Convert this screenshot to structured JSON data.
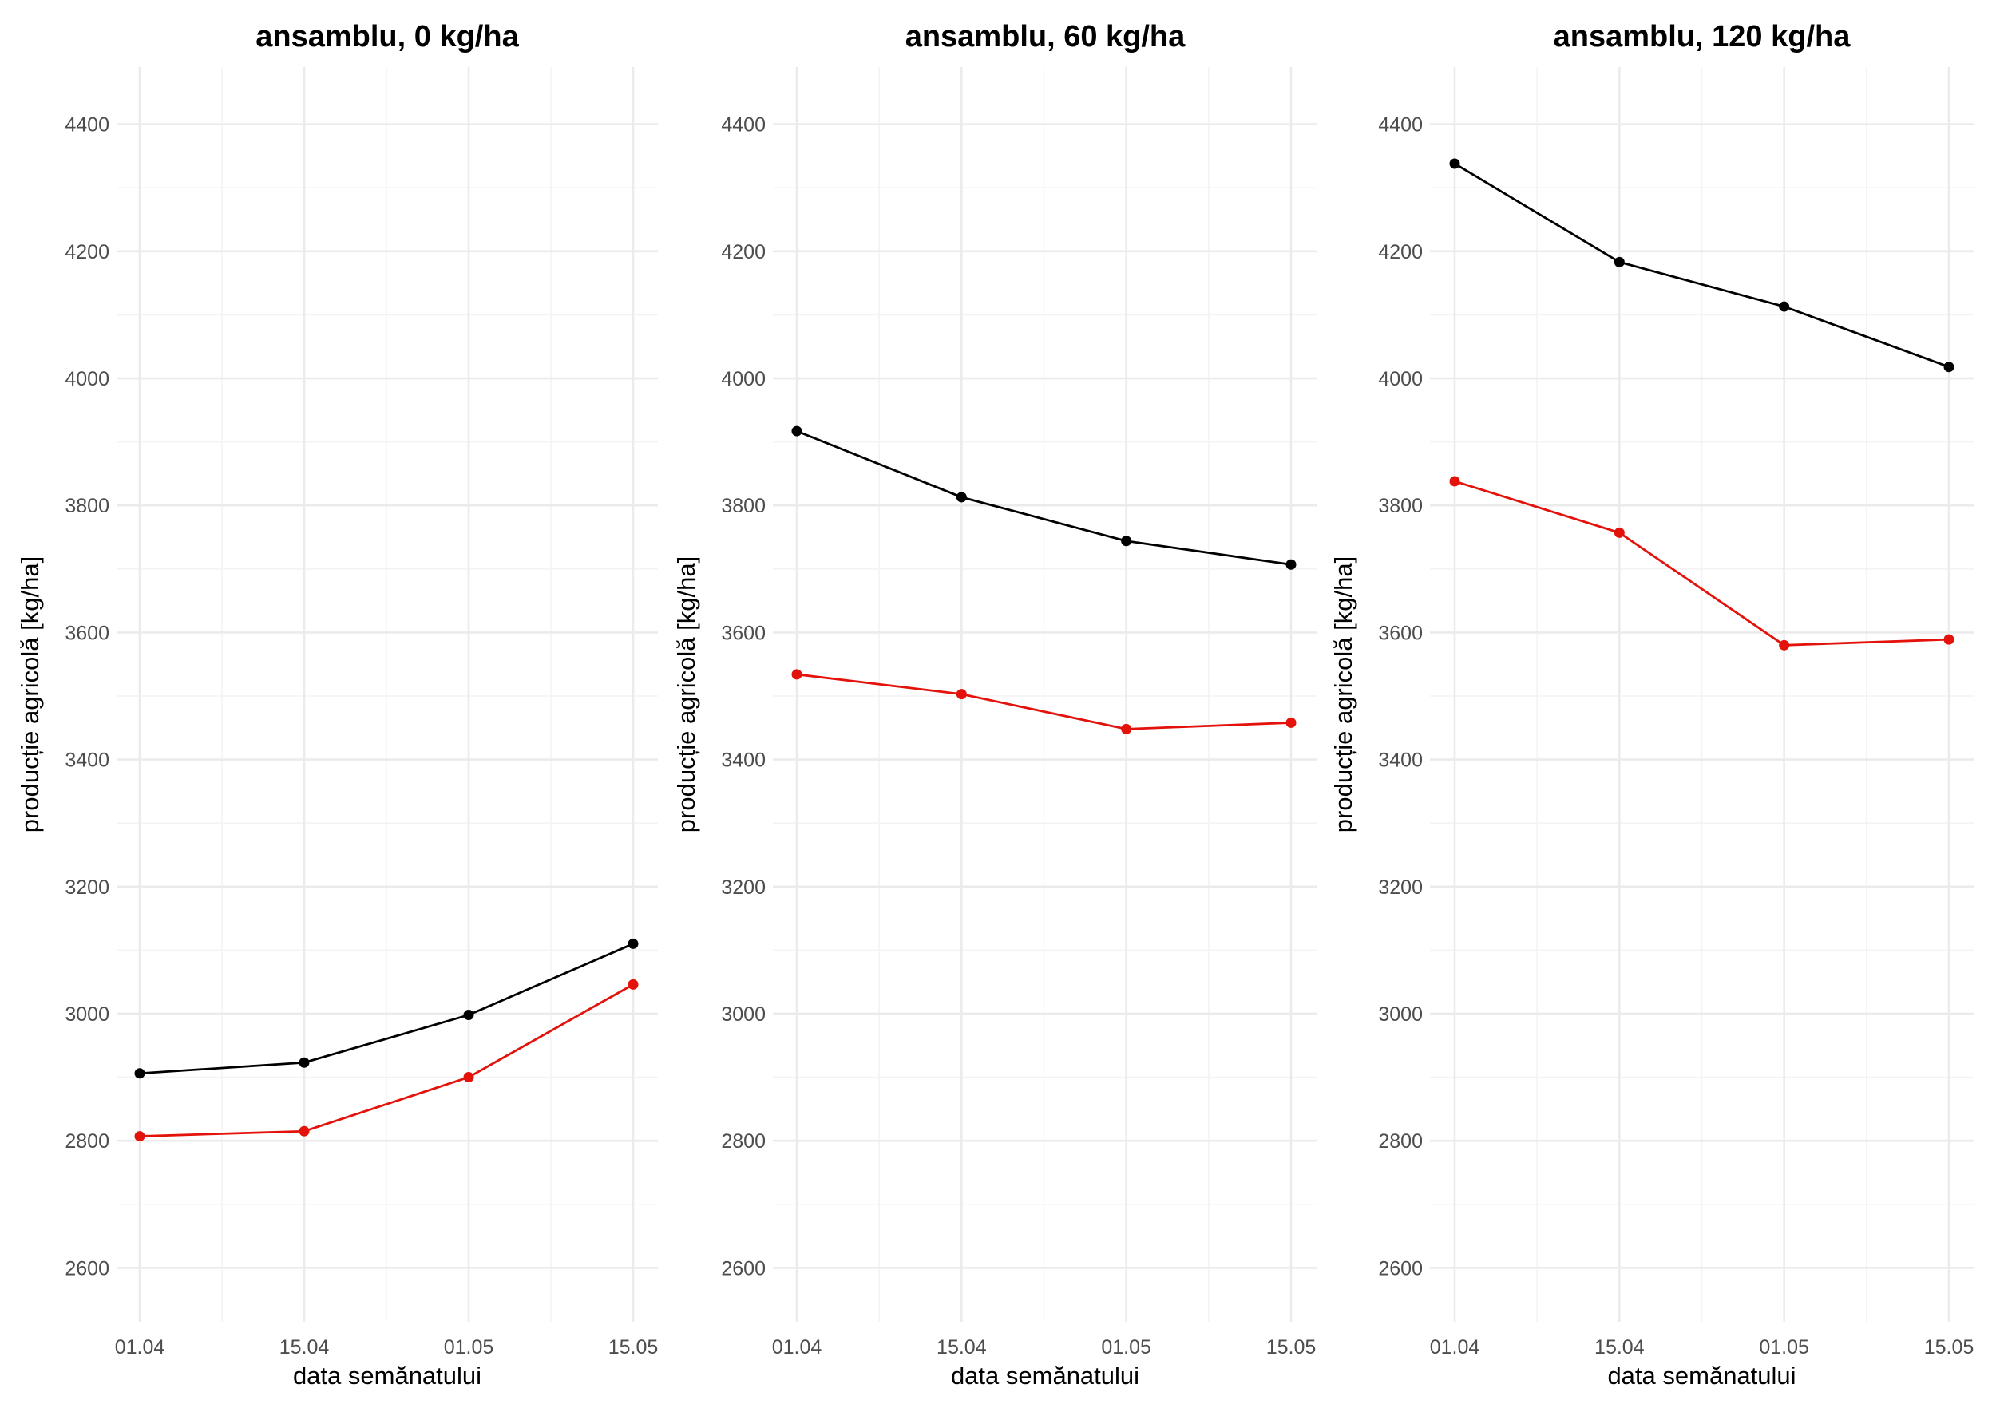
{
  "chart_data": [
    {
      "type": "line",
      "title": "ansamblu, 0 kg/ha",
      "xlabel": "data semănatului",
      "ylabel": "producție agricolă [kg/ha]",
      "x": [
        "01.04",
        "15.04",
        "01.05",
        "15.05"
      ],
      "y_ticks": [
        2600,
        2800,
        3000,
        3200,
        3400,
        3600,
        3800,
        4000,
        4200,
        4400
      ],
      "ylim": [
        2515,
        4490
      ],
      "grid": true,
      "series": [
        {
          "color": "#000000",
          "values": [
            2906,
            2923,
            2998,
            3110
          ]
        },
        {
          "color": "#e3120b",
          "values": [
            2807,
            2815,
            2900,
            3046
          ]
        }
      ]
    },
    {
      "type": "line",
      "title": "ansamblu, 60 kg/ha",
      "xlabel": "data semănatului",
      "ylabel": "producție agricolă [kg/ha]",
      "x": [
        "01.04",
        "15.04",
        "01.05",
        "15.05"
      ],
      "y_ticks": [
        2600,
        2800,
        3000,
        3200,
        3400,
        3600,
        3800,
        4000,
        4200,
        4400
      ],
      "ylim": [
        2515,
        4490
      ],
      "grid": true,
      "series": [
        {
          "color": "#000000",
          "values": [
            3917,
            3813,
            3744,
            3707
          ]
        },
        {
          "color": "#e3120b",
          "values": [
            3534,
            3503,
            3448,
            3458
          ]
        }
      ]
    },
    {
      "type": "line",
      "title": "ansamblu, 120 kg/ha",
      "xlabel": "data semănatului",
      "ylabel": "producție agricolă [kg/ha]",
      "x": [
        "01.04",
        "15.04",
        "01.05",
        "15.05"
      ],
      "y_ticks": [
        2600,
        2800,
        3000,
        3200,
        3400,
        3600,
        3800,
        4000,
        4200,
        4400
      ],
      "ylim": [
        2515,
        4490
      ],
      "grid": true,
      "series": [
        {
          "color": "#000000",
          "values": [
            4338,
            4183,
            4113,
            4018
          ]
        },
        {
          "color": "#e3120b",
          "values": [
            3838,
            3757,
            3580,
            3589
          ]
        }
      ]
    }
  ]
}
